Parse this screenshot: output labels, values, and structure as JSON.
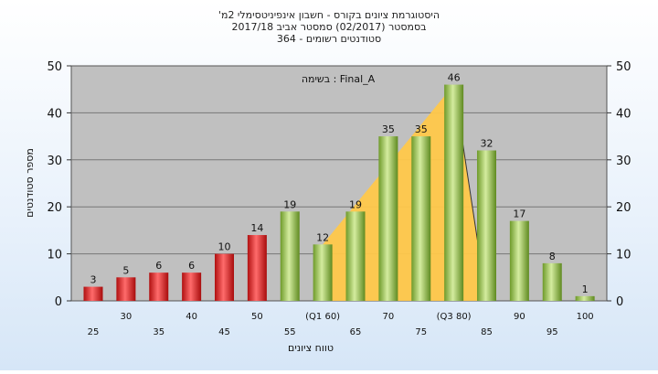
{
  "chart_data": {
    "type": "bar",
    "title": "'היסטוגרמת ציונים בקורס - חשבון אינפיניטסימלי 2מ",
    "subtitle_1": "בסמסטר  (02/2017)  סמסטר אביב 2017/18",
    "subtitle_2": "סטודנטים רשומים - 364",
    "annotation": "בשימה : Final_A",
    "xlabel": "טווח ציונים",
    "ylabel": "מספר סטודנטים",
    "ylim": [
      0,
      50
    ],
    "yticks": [
      "0",
      "10",
      "20",
      "30",
      "40",
      "50"
    ],
    "categories": [
      "25",
      "30",
      "35",
      "40",
      "45",
      "50",
      "55",
      "(Q1 60)",
      "65",
      "70",
      "75",
      "(Q3 80)",
      "85",
      "90",
      "95",
      "100"
    ],
    "values": [
      3,
      5,
      6,
      6,
      10,
      14,
      19,
      12,
      19,
      35,
      35,
      46,
      32,
      17,
      8,
      1
    ],
    "data_labels": [
      "3",
      "5",
      "6",
      "6",
      "10",
      "14",
      "19",
      "12",
      "19",
      "35",
      "35",
      "46",
      "32",
      "17",
      "8",
      "1"
    ],
    "bar_colors": [
      "red",
      "red",
      "red",
      "red",
      "red",
      "red",
      "green",
      "green",
      "green",
      "green",
      "green",
      "green",
      "green",
      "green",
      "green",
      "green"
    ],
    "colors": {
      "red_top": "#ff5a5a",
      "red_bottom": "#b01010",
      "green_top": "#cfe89a",
      "green_bottom": "#6e9a2a",
      "quartile_band": "#ffc84a",
      "plot_bg": "#c0c0c0"
    },
    "grid": true
  }
}
